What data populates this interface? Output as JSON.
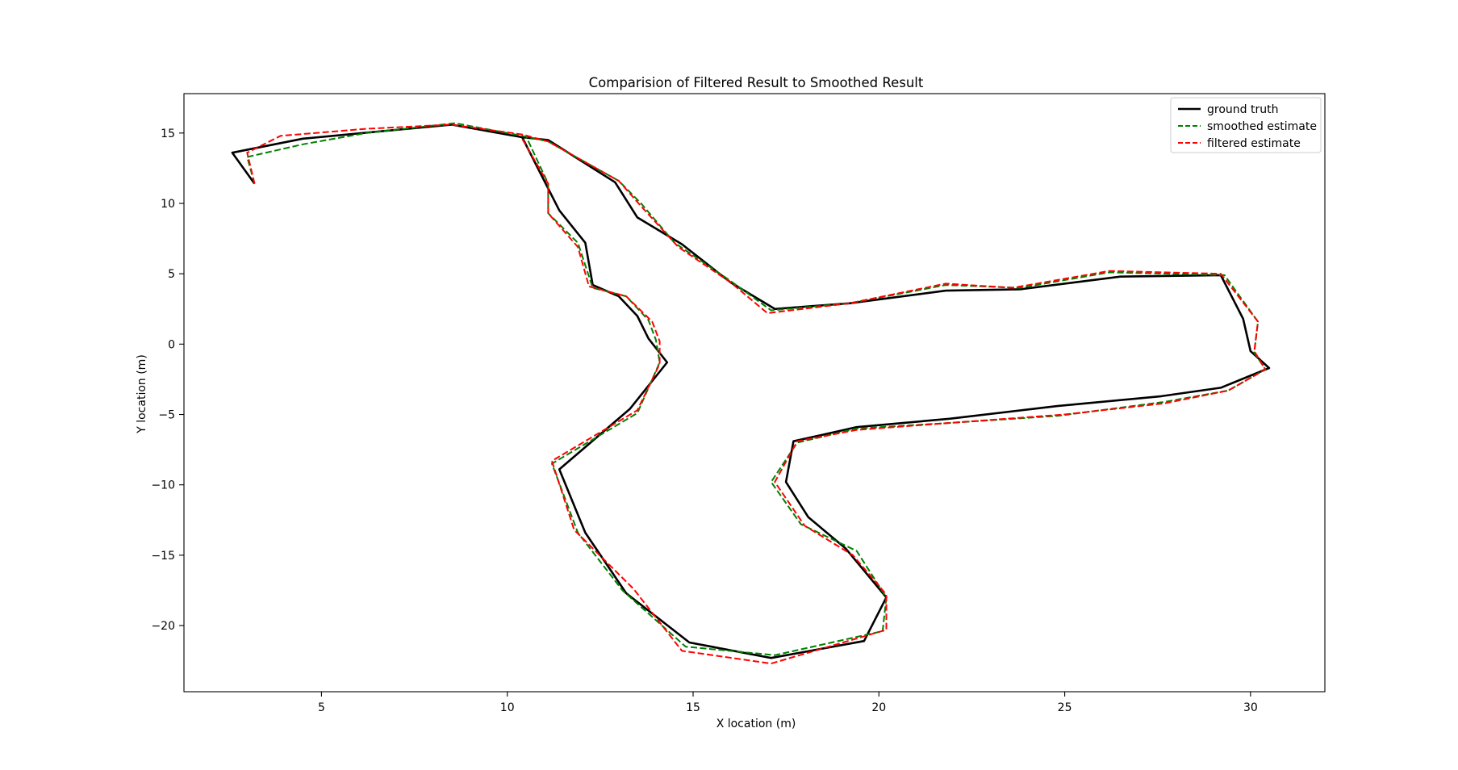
{
  "chart_data": {
    "type": "line",
    "title": "Comparision of Filtered Result to Smoothed Result",
    "xlabel": "X location (m)",
    "ylabel": "Y location (m)",
    "xlim": [
      1.3,
      32.0
    ],
    "ylim": [
      -24.7,
      17.8
    ],
    "xticks": [
      5,
      10,
      15,
      20,
      25,
      30
    ],
    "yticks": [
      -20,
      -15,
      -10,
      -5,
      0,
      5,
      10,
      15
    ],
    "grid": false,
    "legend_position": "upper right",
    "series": [
      {
        "name": "ground truth",
        "color": "#000000",
        "style": "solid",
        "points": [
          [
            3.2,
            11.4
          ],
          [
            2.6,
            13.6
          ],
          [
            4.5,
            14.6
          ],
          [
            8.5,
            15.6
          ],
          [
            10.4,
            14.7
          ],
          [
            11.1,
            14.5
          ],
          [
            12.9,
            11.5
          ],
          [
            13.5,
            9.0
          ],
          [
            14.7,
            7.1
          ],
          [
            16.0,
            4.4
          ],
          [
            17.2,
            2.5
          ],
          [
            19.2,
            2.9
          ],
          [
            21.8,
            3.8
          ],
          [
            23.8,
            3.9
          ],
          [
            26.5,
            4.8
          ],
          [
            29.2,
            4.9
          ],
          [
            29.8,
            1.8
          ],
          [
            30.0,
            -0.5
          ],
          [
            30.5,
            -1.7
          ],
          [
            29.2,
            -3.1
          ],
          [
            27.6,
            -3.7
          ],
          [
            24.8,
            -4.4
          ],
          [
            21.9,
            -5.3
          ],
          [
            19.4,
            -5.9
          ],
          [
            17.7,
            -6.9
          ],
          [
            17.5,
            -9.8
          ],
          [
            18.1,
            -12.3
          ],
          [
            19.1,
            -14.5
          ],
          [
            20.2,
            -18.0
          ],
          [
            19.6,
            -21.1
          ],
          [
            17.1,
            -22.3
          ],
          [
            14.9,
            -21.2
          ],
          [
            13.2,
            -17.7
          ],
          [
            12.1,
            -13.4
          ],
          [
            11.4,
            -8.9
          ],
          [
            13.3,
            -4.6
          ],
          [
            14.3,
            -1.3
          ],
          [
            13.8,
            0.4
          ],
          [
            13.5,
            2.0
          ],
          [
            13.0,
            3.4
          ],
          [
            12.3,
            4.2
          ],
          [
            12.1,
            7.2
          ],
          [
            11.4,
            9.5
          ],
          [
            10.4,
            14.7
          ]
        ]
      },
      {
        "name": "smoothed estimate",
        "color": "#008000",
        "style": "dashed",
        "points": [
          [
            3.2,
            11.4
          ],
          [
            3.0,
            13.3
          ],
          [
            4.5,
            14.2
          ],
          [
            6.2,
            15.0
          ],
          [
            8.6,
            15.7
          ],
          [
            10.4,
            14.8
          ],
          [
            11.1,
            14.4
          ],
          [
            13.0,
            11.6
          ],
          [
            13.6,
            10.0
          ],
          [
            14.5,
            7.2
          ],
          [
            16.0,
            4.5
          ],
          [
            17.1,
            2.4
          ],
          [
            19.2,
            2.9
          ],
          [
            21.8,
            4.2
          ],
          [
            23.8,
            4.0
          ],
          [
            26.2,
            5.1
          ],
          [
            29.3,
            4.9
          ],
          [
            30.2,
            1.6
          ],
          [
            30.1,
            -0.6
          ],
          [
            30.4,
            -1.8
          ],
          [
            29.4,
            -3.3
          ],
          [
            27.7,
            -4.1
          ],
          [
            24.8,
            -5.1
          ],
          [
            21.9,
            -5.6
          ],
          [
            19.4,
            -6.0
          ],
          [
            17.8,
            -7.0
          ],
          [
            17.1,
            -9.8
          ],
          [
            17.9,
            -12.8
          ],
          [
            19.4,
            -14.7
          ],
          [
            20.2,
            -18.0
          ],
          [
            20.1,
            -20.4
          ],
          [
            17.2,
            -22.1
          ],
          [
            14.8,
            -21.5
          ],
          [
            13.1,
            -17.5
          ],
          [
            11.9,
            -13.4
          ],
          [
            11.2,
            -8.5
          ],
          [
            13.5,
            -4.9
          ],
          [
            14.1,
            -1.3
          ],
          [
            14.0,
            0.3
          ],
          [
            13.8,
            1.7
          ],
          [
            13.2,
            3.4
          ],
          [
            12.3,
            4.0
          ],
          [
            11.9,
            7.2
          ],
          [
            11.1,
            9.3
          ],
          [
            11.1,
            11.4
          ],
          [
            10.5,
            14.8
          ]
        ]
      },
      {
        "name": "filtered estimate",
        "color": "#ff0000",
        "style": "dashed",
        "points": [
          [
            3.2,
            11.4
          ],
          [
            3.0,
            13.6
          ],
          [
            3.9,
            14.8
          ],
          [
            6.2,
            15.3
          ],
          [
            8.5,
            15.6
          ],
          [
            10.4,
            14.9
          ],
          [
            11.1,
            14.4
          ],
          [
            13.0,
            11.6
          ],
          [
            13.6,
            9.8
          ],
          [
            14.6,
            6.9
          ],
          [
            16.0,
            4.4
          ],
          [
            17.0,
            2.2
          ],
          [
            19.2,
            2.9
          ],
          [
            21.8,
            4.3
          ],
          [
            23.6,
            4.0
          ],
          [
            26.2,
            5.2
          ],
          [
            29.2,
            5.0
          ],
          [
            30.2,
            1.6
          ],
          [
            30.1,
            -0.5
          ],
          [
            30.4,
            -1.8
          ],
          [
            29.4,
            -3.3
          ],
          [
            27.7,
            -4.2
          ],
          [
            25.0,
            -5.0
          ],
          [
            21.9,
            -5.6
          ],
          [
            19.4,
            -6.1
          ],
          [
            17.8,
            -6.9
          ],
          [
            17.2,
            -9.8
          ],
          [
            18.0,
            -12.9
          ],
          [
            19.3,
            -15.0
          ],
          [
            20.2,
            -17.8
          ],
          [
            20.2,
            -20.3
          ],
          [
            17.1,
            -22.7
          ],
          [
            14.7,
            -21.8
          ],
          [
            13.4,
            -17.4
          ],
          [
            11.8,
            -13.2
          ],
          [
            11.2,
            -8.3
          ],
          [
            13.5,
            -4.7
          ],
          [
            14.1,
            -1.4
          ],
          [
            14.1,
            0.2
          ],
          [
            13.9,
            1.6
          ],
          [
            13.2,
            3.4
          ],
          [
            12.2,
            4.1
          ],
          [
            11.9,
            6.9
          ],
          [
            11.1,
            9.3
          ],
          [
            11.1,
            11.4
          ],
          [
            10.4,
            14.6
          ]
        ]
      }
    ]
  }
}
